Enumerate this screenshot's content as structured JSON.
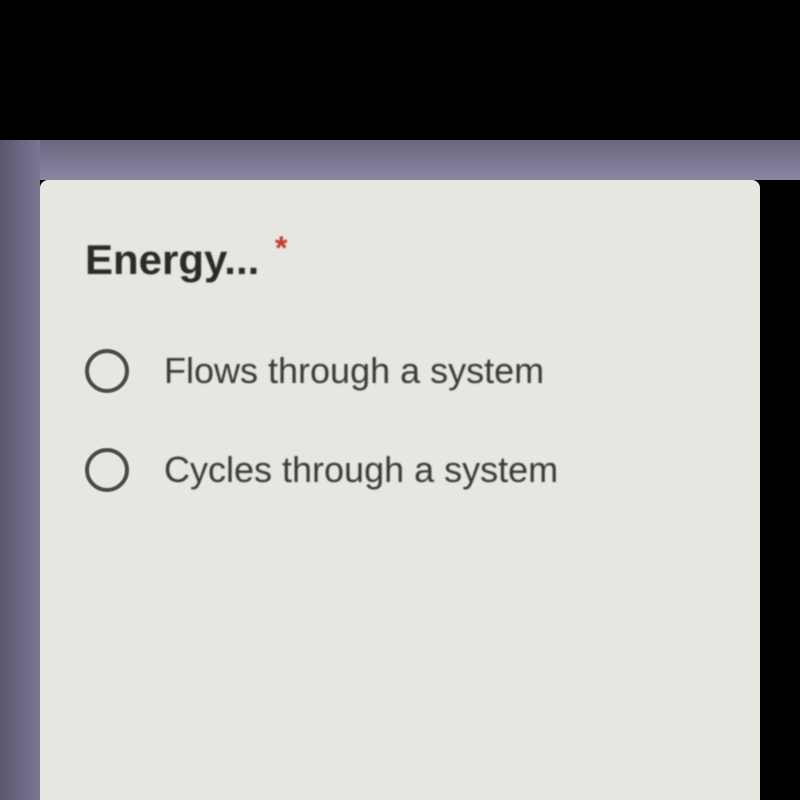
{
  "question": {
    "title": "Energy...",
    "required_marker": "*",
    "required": true
  },
  "options": [
    {
      "label": "Flows through a system",
      "selected": false
    },
    {
      "label": "Cycles through a system",
      "selected": false
    }
  ],
  "colors": {
    "background": "#000000",
    "card_background": "#e8e6e0",
    "border_accent": "#7a7590",
    "text_primary": "#2a2a2a",
    "text_secondary": "#3a3a3a",
    "radio_border": "#4a4a4a",
    "required_asterisk": "#c0392b"
  },
  "typography": {
    "title_fontsize": 42,
    "title_weight": "bold",
    "option_fontsize": 36,
    "option_weight": 500
  },
  "layout": {
    "card_padding": 50,
    "option_spacing": 55,
    "radio_size": 44,
    "radio_border_width": 4
  }
}
